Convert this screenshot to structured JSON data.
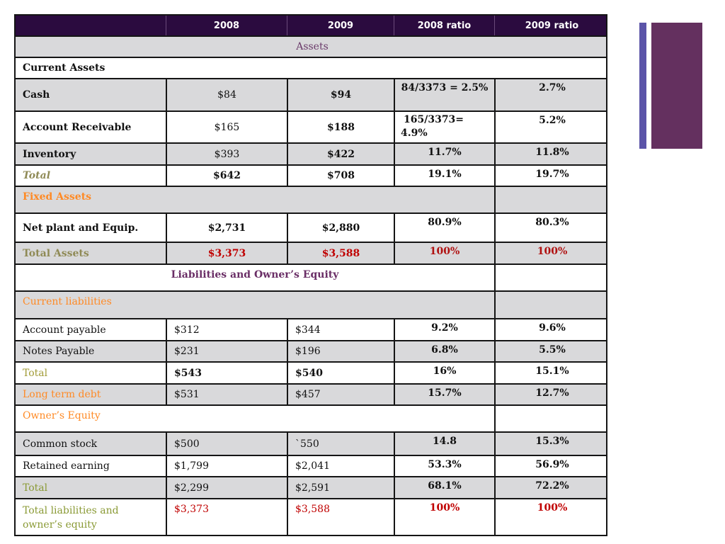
{
  "header": {
    "col0": "",
    "col1": "2008",
    "col2": "2009",
    "col3": "2008 ratio",
    "col4": "2009 ratio"
  },
  "sections": {
    "assets": "Assets",
    "current_assets": "Current Assets",
    "fixed_assets": "Fixed Assets",
    "liabilities_equity": "Liabilities and Owner’s Equity",
    "current_liabilities": "Current liabilities",
    "owners_equity": "Owner’s Equity"
  },
  "rows": {
    "cash": {
      "label": "Cash",
      "y2008": "$84",
      "y2009": "$94",
      "r2008": "84/3373 = 2.5%",
      "r2009": "2.7%"
    },
    "receivable": {
      "label": "Account Receivable",
      "y2008": "$165",
      "y2009": "$188",
      "r2008_line1": "165/3373=",
      "r2008_line2": "4.9%",
      "r2009": "5.2%"
    },
    "inventory": {
      "label": "Inventory",
      "y2008": "$393",
      "y2009": "$422",
      "r2008": "11.7%",
      "r2009": "11.8%"
    },
    "total_current": {
      "label": "Total",
      "y2008": "$642",
      "y2009": "$708",
      "r2008": "19.1%",
      "r2009": "19.7%"
    },
    "net_plant": {
      "label": "Net plant and Equip.",
      "y2008": "$2,731",
      "y2009": "$2,880",
      "r2008": "80.9%",
      "r2009": "80.3%"
    },
    "total_assets": {
      "label": "Total Assets",
      "y2008": "$3,373",
      "y2009": "$3,588",
      "r2008": "100%",
      "r2009": "100%"
    },
    "acct_payable": {
      "label": "Account payable",
      "y2008": "$312",
      "y2009": "$344",
      "r2008": "9.2%",
      "r2009": "9.6%"
    },
    "notes_payable": {
      "label": "Notes Payable",
      "y2008": "$231",
      "y2009": "$196",
      "r2008": "6.8%",
      "r2009": "5.5%"
    },
    "total_liab": {
      "label": "Total",
      "y2008": "$543",
      "y2009": "$540",
      "r2008": "16%",
      "r2009": "15.1%"
    },
    "lt_debt": {
      "label": "Long term debt",
      "y2008": "$531",
      "y2009": "$457",
      "r2008": "15.7%",
      "r2009": "12.7%"
    },
    "common_stock": {
      "label": "Common stock",
      "y2008": "$500",
      "y2009": "`550",
      "r2008": "14.8",
      "r2009": "15.3%"
    },
    "retained": {
      "label": "Retained earning",
      "y2008": "$1,799",
      "y2009": "$2,041",
      "r2008": "53.3%",
      "r2009": "56.9%"
    },
    "total_equity": {
      "label": "Total",
      "y2008": "$2,299",
      "y2009": "$2,591",
      "r2008": "68.1%",
      "r2009": "72.2%"
    },
    "total_le": {
      "label_line1": "Total liabilities and",
      "label_line2": "owner’s equity",
      "y2008": "$3,373",
      "y2009": "$3,588",
      "r2008": "100%",
      "r2009": "100%"
    }
  },
  "colors": {
    "header_bg": "#2b0b3f",
    "band_grey": "#d9d9db",
    "accent_bar_blue": "#5b54a8",
    "accent_bar_purple": "#64305f"
  }
}
